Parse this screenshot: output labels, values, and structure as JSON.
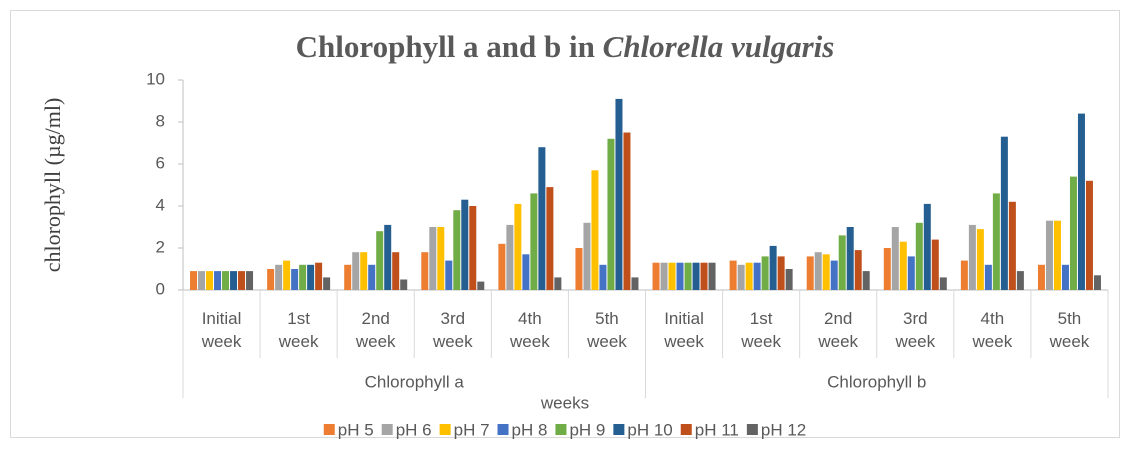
{
  "chart_data": {
    "type": "bar",
    "title": [
      "Chlorophyll a and b in",
      "Chlorella vulgaris"
    ],
    "y_label": "chlorophyll  (µg/ml)",
    "x_label": "weeks",
    "groups": [
      "Chlorophyll a",
      "Chlorophyll b"
    ],
    "categories": [
      "Initial week",
      "1st week",
      "2nd week",
      "3rd week",
      "4th week",
      "5th week",
      "Initial week",
      "1st week",
      "2nd week",
      "3rd week",
      "4th week",
      "5th week"
    ],
    "ylim": [
      0,
      10
    ],
    "yticks": [
      0,
      2,
      4,
      6,
      8,
      10
    ],
    "grid": false,
    "legend": "bottom",
    "series": [
      {
        "name": "pH 5",
        "color": "#ed7d31",
        "values": [
          0.9,
          1.0,
          1.2,
          1.8,
          2.2,
          2.0,
          1.3,
          1.4,
          1.6,
          2.0,
          1.4,
          1.2
        ]
      },
      {
        "name": "pH 6",
        "color": "#a5a5a5",
        "values": [
          0.9,
          1.2,
          1.8,
          3.0,
          3.1,
          3.2,
          1.3,
          1.2,
          1.8,
          3.0,
          3.1,
          3.3
        ]
      },
      {
        "name": "pH 7",
        "color": "#ffc000",
        "values": [
          0.9,
          1.4,
          1.8,
          3.0,
          4.1,
          5.7,
          1.3,
          1.3,
          1.7,
          2.3,
          2.9,
          3.3
        ]
      },
      {
        "name": "pH 8",
        "color": "#4472c4",
        "values": [
          0.9,
          1.0,
          1.2,
          1.4,
          1.7,
          1.2,
          1.3,
          1.3,
          1.4,
          1.6,
          1.2,
          1.2
        ]
      },
      {
        "name": "pH 9",
        "color": "#70ad47",
        "values": [
          0.9,
          1.2,
          2.8,
          3.8,
          4.6,
          7.2,
          1.3,
          1.6,
          2.6,
          3.2,
          4.6,
          5.4
        ]
      },
      {
        "name": "pH 10",
        "color": "#255e91",
        "values": [
          0.9,
          1.2,
          3.1,
          4.3,
          6.8,
          9.1,
          1.3,
          2.1,
          3.0,
          4.1,
          7.3,
          8.4
        ]
      },
      {
        "name": "pH 11",
        "color": "#c0501b",
        "values": [
          0.9,
          1.3,
          1.8,
          4.0,
          4.9,
          7.5,
          1.3,
          1.6,
          1.9,
          2.4,
          4.2,
          5.2
        ]
      },
      {
        "name": "pH 12",
        "color": "#636363",
        "values": [
          0.9,
          0.6,
          0.5,
          0.4,
          0.6,
          0.6,
          1.3,
          1.0,
          0.9,
          0.6,
          0.9,
          0.7
        ]
      }
    ]
  }
}
